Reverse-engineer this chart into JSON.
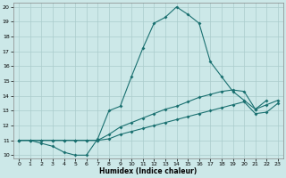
{
  "xlabel": "Humidex (Indice chaleur)",
  "xlim": [
    -0.5,
    23.5
  ],
  "ylim": [
    9.8,
    20.3
  ],
  "xticks": [
    0,
    1,
    2,
    3,
    4,
    5,
    6,
    7,
    8,
    9,
    10,
    11,
    12,
    13,
    14,
    15,
    16,
    17,
    18,
    19,
    20,
    21,
    22,
    23
  ],
  "yticks": [
    10,
    11,
    12,
    13,
    14,
    15,
    16,
    17,
    18,
    19,
    20
  ],
  "bg_color": "#cce8e8",
  "grid_color": "#aacccc",
  "line_color": "#1a7070",
  "line1_x": [
    0,
    1,
    2,
    3,
    4,
    5,
    6,
    7,
    8,
    9,
    10,
    11,
    12,
    13,
    14,
    15,
    16,
    17,
    18,
    19,
    20,
    21,
    22
  ],
  "line1_y": [
    11.0,
    11.0,
    10.8,
    10.6,
    10.2,
    10.0,
    10.0,
    11.1,
    13.0,
    13.3,
    15.3,
    17.2,
    18.9,
    19.3,
    20.0,
    19.5,
    18.9,
    16.3,
    15.3,
    14.3,
    13.7,
    13.1,
    13.7
  ],
  "line2_x": [
    0,
    1,
    2,
    3,
    4,
    5,
    6,
    7,
    8,
    9,
    10,
    11,
    12,
    13,
    14,
    15,
    16,
    17,
    18,
    19,
    20,
    21,
    22,
    23
  ],
  "line2_y": [
    11.0,
    11.0,
    11.0,
    11.0,
    11.0,
    11.0,
    11.0,
    11.0,
    11.4,
    11.9,
    12.2,
    12.5,
    12.8,
    13.1,
    13.3,
    13.6,
    13.9,
    14.1,
    14.3,
    14.4,
    14.3,
    13.1,
    13.4,
    13.7
  ],
  "line3_x": [
    0,
    1,
    2,
    3,
    4,
    5,
    6,
    7,
    8,
    9,
    10,
    11,
    12,
    13,
    14,
    15,
    16,
    17,
    18,
    19,
    20,
    21,
    22,
    23
  ],
  "line3_y": [
    11.0,
    11.0,
    11.0,
    11.0,
    11.0,
    11.0,
    11.0,
    11.0,
    11.1,
    11.4,
    11.6,
    11.8,
    12.0,
    12.2,
    12.4,
    12.6,
    12.8,
    13.0,
    13.2,
    13.4,
    13.6,
    12.8,
    12.9,
    13.5
  ]
}
